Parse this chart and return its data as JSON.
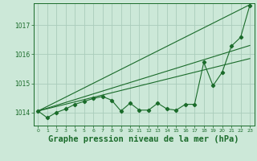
{
  "background_color": "#cce8d8",
  "grid_color": "#aaccbb",
  "line_color": "#1a6b2a",
  "xlabel": "Graphe pression niveau de la mer (hPa)",
  "xlabel_fontsize": 7.5,
  "xlim": [
    -0.5,
    23.5
  ],
  "ylim": [
    1013.55,
    1017.75
  ],
  "yticks": [
    1014,
    1015,
    1016,
    1017
  ],
  "xticks": [
    0,
    1,
    2,
    3,
    4,
    5,
    6,
    7,
    8,
    9,
    10,
    11,
    12,
    13,
    14,
    15,
    16,
    17,
    18,
    19,
    20,
    21,
    22,
    23
  ],
  "line1_x": [
    0,
    23
  ],
  "line1_y": [
    1014.05,
    1017.7
  ],
  "line2_x": [
    0,
    23
  ],
  "line2_y": [
    1014.05,
    1015.85
  ],
  "line3_x": [
    0,
    23
  ],
  "line3_y": [
    1014.05,
    1016.3
  ],
  "series_x": [
    0,
    1,
    2,
    3,
    4,
    5,
    6,
    7,
    8,
    9,
    10,
    11,
    12,
    13,
    14,
    15,
    16,
    17,
    18,
    19,
    20,
    21,
    22,
    23
  ],
  "series_y": [
    1014.05,
    1013.82,
    1014.0,
    1014.12,
    1014.28,
    1014.38,
    1014.48,
    1014.55,
    1014.42,
    1014.05,
    1014.32,
    1014.08,
    1014.08,
    1014.32,
    1014.12,
    1014.08,
    1014.28,
    1014.28,
    1015.72,
    1014.92,
    1015.38,
    1016.28,
    1016.58,
    1017.68
  ]
}
